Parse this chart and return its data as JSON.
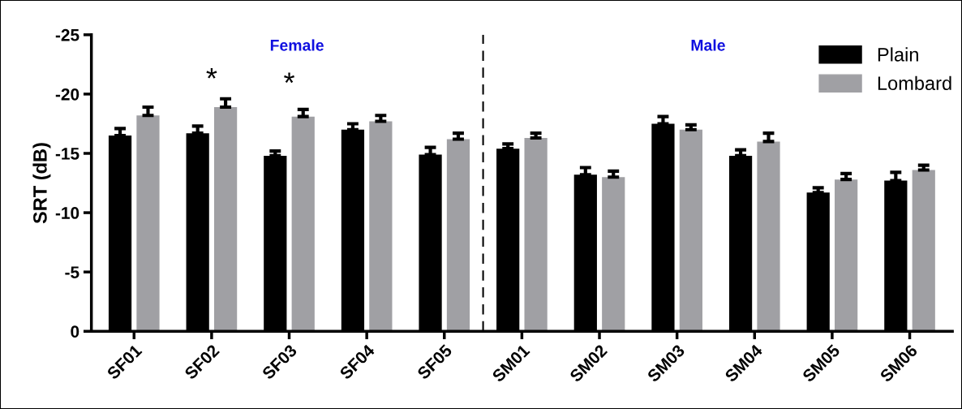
{
  "chart_data": {
    "type": "bar",
    "ylabel": "SRT (dB)",
    "categories": [
      "SF01",
      "SF02",
      "SF03",
      "SF04",
      "SF05",
      "SM01",
      "SM02",
      "SM03",
      "SM04",
      "SM05",
      "SM06"
    ],
    "series": [
      {
        "name": "Plain",
        "color": "#000000",
        "values": [
          -16.5,
          -16.7,
          -14.8,
          -17.0,
          -14.9,
          -15.4,
          -13.2,
          -17.5,
          -14.8,
          -11.7,
          -12.7
        ],
        "errors": [
          [
            -17.1,
            -16.5
          ],
          [
            -17.3,
            -16.7
          ],
          [
            -15.2,
            -14.8
          ],
          [
            -17.5,
            -17.0
          ],
          [
            -15.5,
            -14.9
          ],
          [
            -15.8,
            -15.4
          ],
          [
            -13.8,
            -13.2
          ],
          [
            -18.1,
            -17.5
          ],
          [
            -15.3,
            -14.8
          ],
          [
            -12.1,
            -11.7
          ],
          [
            -13.4,
            -12.7
          ]
        ]
      },
      {
        "name": "Lombard",
        "color": "#a0a0a4",
        "values": [
          -18.2,
          -18.9,
          -18.1,
          -17.7,
          -16.2,
          -16.3,
          -13.0,
          -17.0,
          -16.0,
          -12.8,
          -13.6
        ],
        "errors": [
          [
            -18.9,
            -18.2
          ],
          [
            -19.6,
            -18.9
          ],
          [
            -18.7,
            -18.1
          ],
          [
            -18.2,
            -17.7
          ],
          [
            -16.7,
            -16.2
          ],
          [
            -16.7,
            -16.3
          ],
          [
            -13.5,
            -13.0
          ],
          [
            -17.4,
            -17.0
          ],
          [
            -16.7,
            -16.0
          ],
          [
            -13.3,
            -12.8
          ],
          [
            -14.0,
            -13.6
          ]
        ]
      }
    ],
    "ylim": [
      0,
      -25
    ],
    "yticks": [
      0,
      -5,
      -10,
      -15,
      -20,
      -25
    ],
    "annotations": [
      "Female",
      "Male",
      "*",
      "*"
    ],
    "legend": "top right",
    "grid": false
  }
}
